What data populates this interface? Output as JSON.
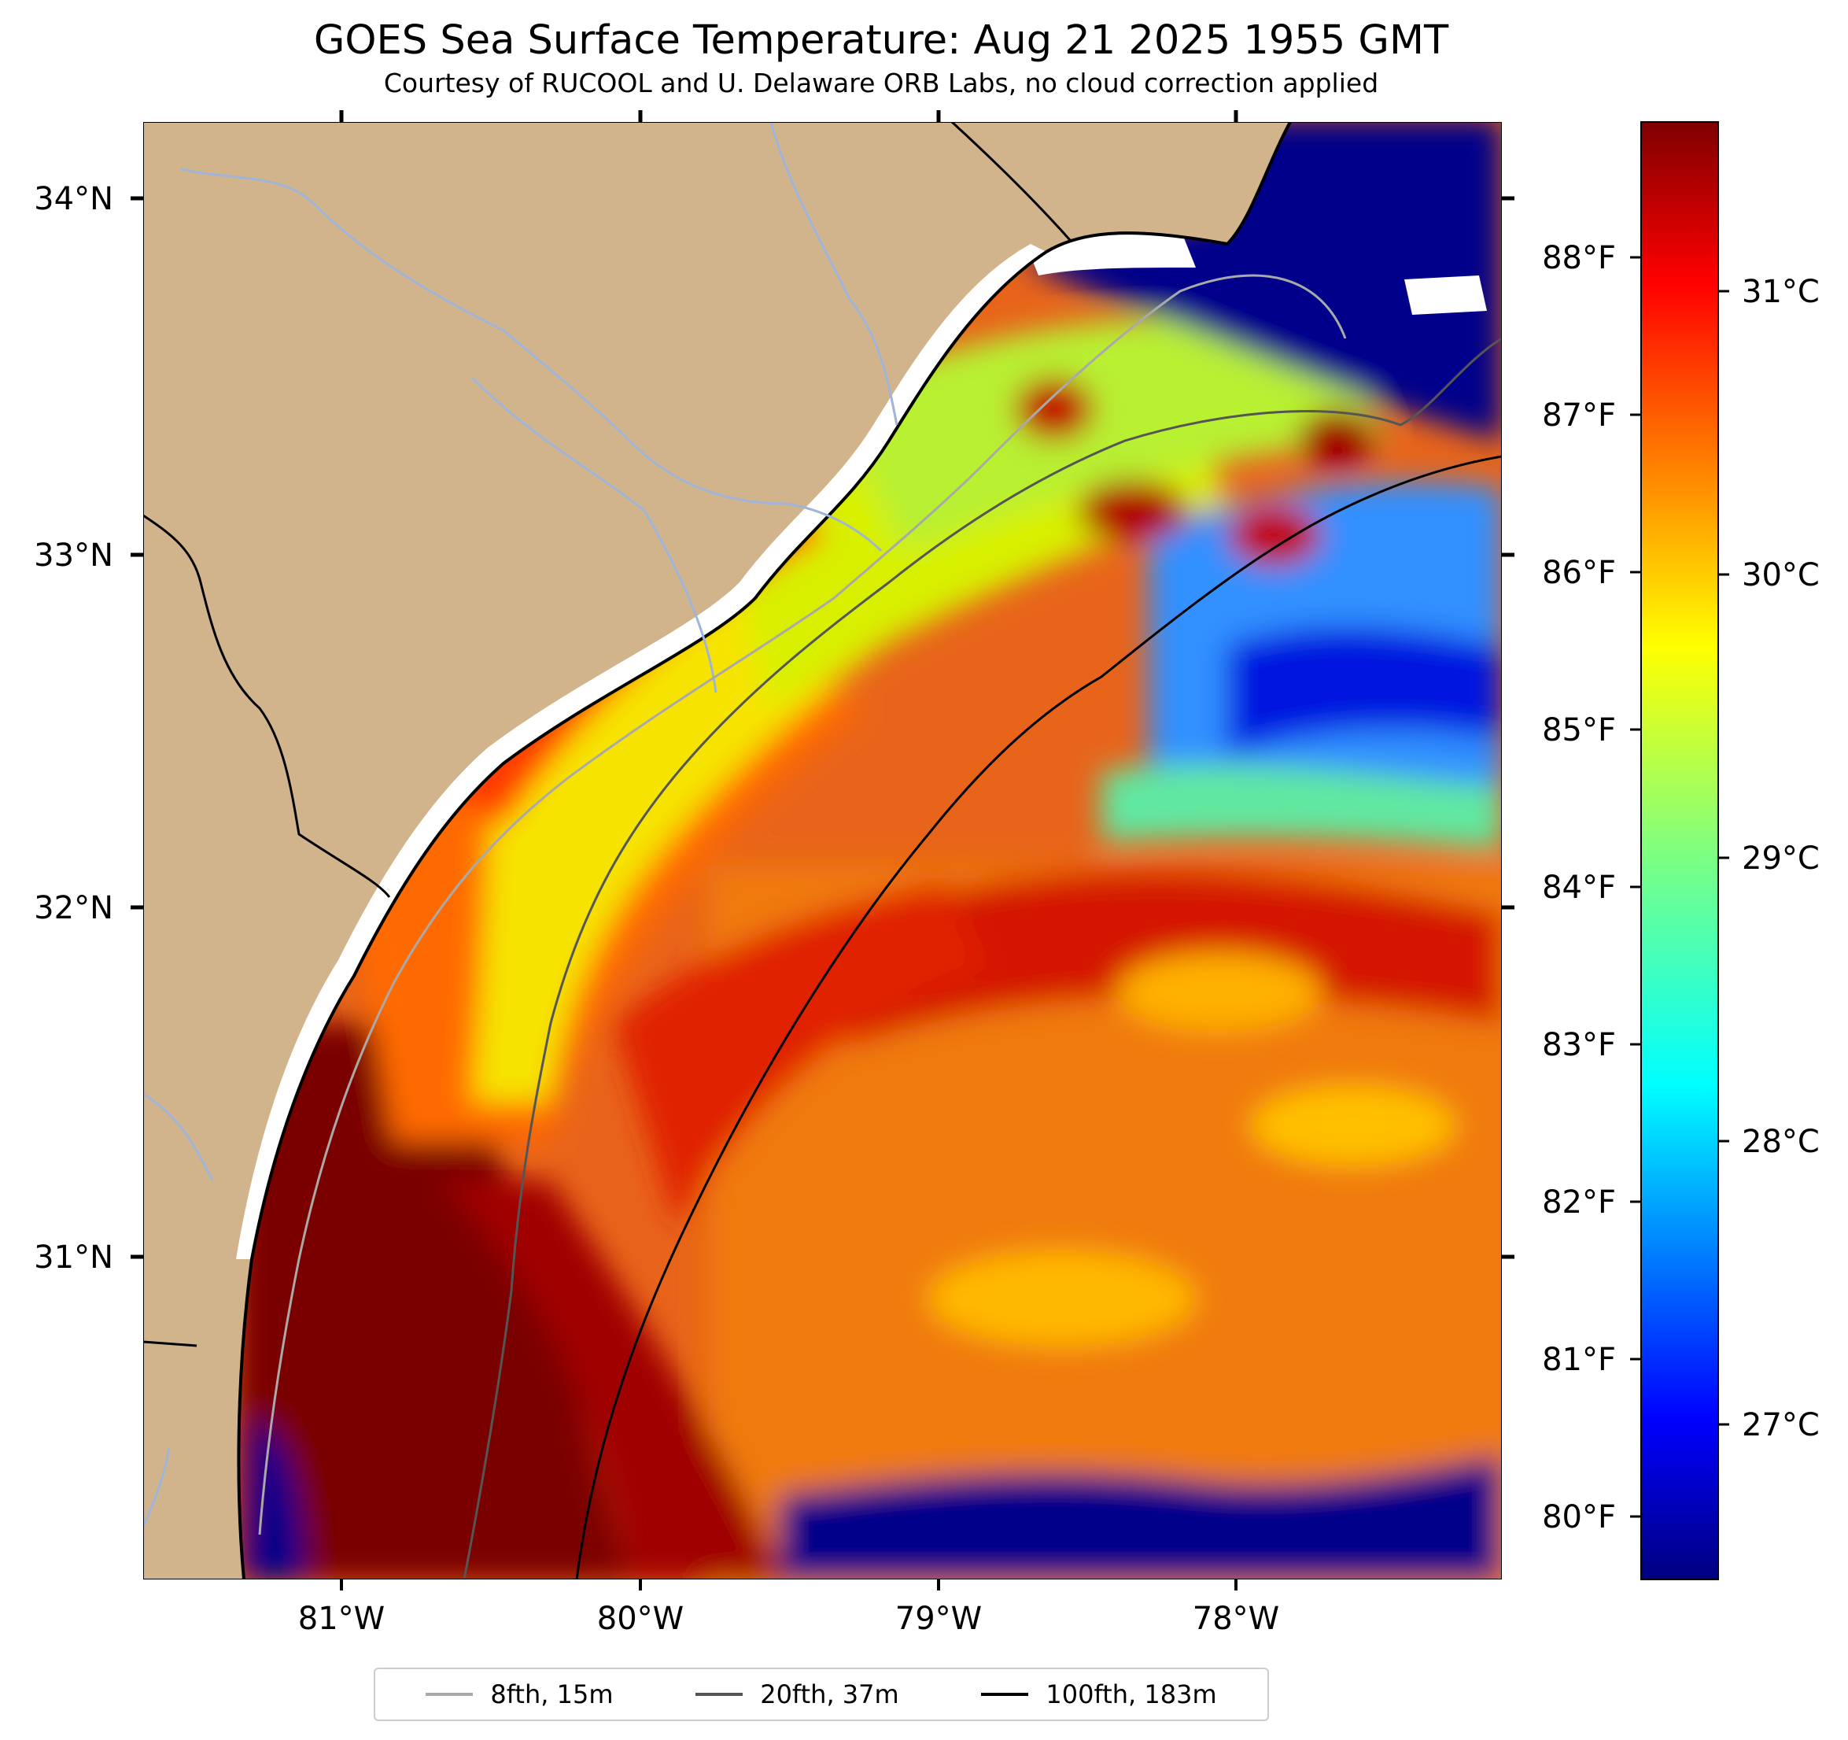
{
  "title": "GOES Sea Surface Temperature: Aug 21 2025 1955 GMT",
  "subtitle": "Courtesy of RUCOOL and U. Delaware ORB Labs, no cloud correction applied",
  "map": {
    "lon_range": [
      -81.67,
      -77.1
    ],
    "lat_range": [
      30.1,
      34.22
    ],
    "lon_ticks": [
      -81,
      -80,
      -79,
      -78
    ],
    "lon_tick_labels": [
      "81°W",
      "80°W",
      "79°W",
      "78°W"
    ],
    "lat_ticks": [
      34,
      33,
      32,
      31
    ],
    "lat_tick_labels": [
      "34°N",
      "33°N",
      "32°N",
      "31°N"
    ],
    "land_color": "#d2b48c",
    "cloud_mask_color": "#ffffff",
    "water_color_note": "sea surface temperature shaded with jet colormap"
  },
  "colorbar": {
    "colormap": "jet",
    "celsius_range": [
      26.5,
      31.8
    ],
    "celsius_ticks": [
      27,
      28,
      29,
      30,
      31
    ],
    "celsius_labels": [
      "27°C",
      "28°C",
      "29°C",
      "30°C",
      "31°C"
    ],
    "fahrenheit_ticks": [
      80,
      81,
      82,
      83,
      84,
      85,
      86,
      87,
      88
    ],
    "fahrenheit_labels": [
      "80°F",
      "81°F",
      "82°F",
      "83°F",
      "84°F",
      "85°F",
      "86°F",
      "87°F",
      "88°F"
    ]
  },
  "legend": {
    "entries": [
      {
        "label": "8fth, 15m",
        "color": "#a9a9a9"
      },
      {
        "label": "20fth, 37m",
        "color": "#555555"
      },
      {
        "label": "100fth, 183m",
        "color": "#000000"
      }
    ]
  }
}
